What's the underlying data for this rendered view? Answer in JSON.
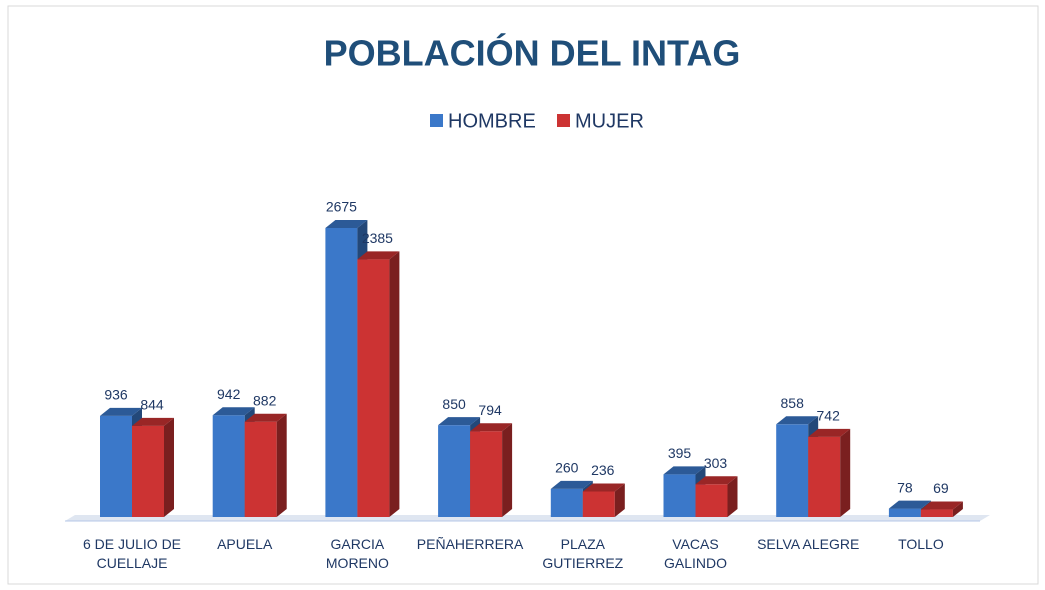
{
  "chart_data": {
    "type": "bar",
    "title": "POBLACIÓN DEL INTAG",
    "categories": [
      "6 DE JULIO DE CUELLAJE",
      "APUELA",
      "GARCIA MORENO",
      "PEÑAHERRERA",
      "PLAZA GUTIERREZ",
      "VACAS GALINDO",
      "SELVA ALEGRE",
      "TOLLO"
    ],
    "series": [
      {
        "name": "HOMBRE",
        "color": "#3b78c9",
        "values": [
          936,
          942,
          2675,
          850,
          260,
          395,
          858,
          78
        ]
      },
      {
        "name": "MUJER",
        "color": "#cc3333",
        "values": [
          844,
          882,
          2385,
          794,
          236,
          303,
          742,
          69
        ]
      }
    ],
    "legend": "top"
  }
}
